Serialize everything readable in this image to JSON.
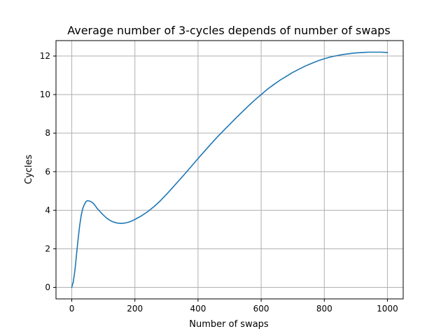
{
  "chart_data": {
    "type": "line",
    "title": "Average number of 3-cycles depends of number of swaps",
    "xlabel": "Number of swaps",
    "ylabel": "Cycles",
    "xlim": [
      -50,
      1050
    ],
    "ylim": [
      -0.6,
      12.8
    ],
    "x_ticks": [
      0,
      200,
      400,
      600,
      800,
      1000
    ],
    "y_ticks": [
      0,
      2,
      4,
      6,
      8,
      10,
      12
    ],
    "grid": true,
    "colors": {
      "line": "#1f77b4",
      "grid": "#b0b0b0"
    },
    "series": [
      {
        "x": [
          0,
          5,
          10,
          15,
          20,
          25,
          30,
          35,
          40,
          45,
          50,
          55,
          60,
          65,
          70,
          75,
          80,
          90,
          100,
          110,
          120,
          130,
          140,
          150,
          160,
          170,
          180,
          190,
          200,
          220,
          240,
          260,
          280,
          300,
          320,
          340,
          360,
          380,
          400,
          420,
          440,
          460,
          480,
          500,
          520,
          540,
          560,
          580,
          600,
          620,
          640,
          660,
          680,
          700,
          720,
          740,
          760,
          780,
          800,
          820,
          840,
          860,
          880,
          900,
          920,
          940,
          960,
          980,
          1000
        ],
        "y": [
          0,
          0.3,
          0.9,
          1.7,
          2.5,
          3.2,
          3.75,
          4.1,
          4.3,
          4.45,
          4.5,
          4.48,
          4.45,
          4.4,
          4.32,
          4.22,
          4.1,
          3.92,
          3.75,
          3.6,
          3.48,
          3.4,
          3.35,
          3.32,
          3.32,
          3.34,
          3.38,
          3.44,
          3.52,
          3.7,
          3.92,
          4.18,
          4.48,
          4.82,
          5.18,
          5.55,
          5.92,
          6.3,
          6.68,
          7.05,
          7.42,
          7.78,
          8.12,
          8.45,
          8.78,
          9.1,
          9.42,
          9.72,
          10.0,
          10.28,
          10.52,
          10.75,
          10.95,
          11.15,
          11.32,
          11.48,
          11.62,
          11.75,
          11.86,
          11.95,
          12.02,
          12.08,
          12.12,
          12.16,
          12.18,
          12.2,
          12.2,
          12.2,
          12.18
        ]
      }
    ]
  }
}
